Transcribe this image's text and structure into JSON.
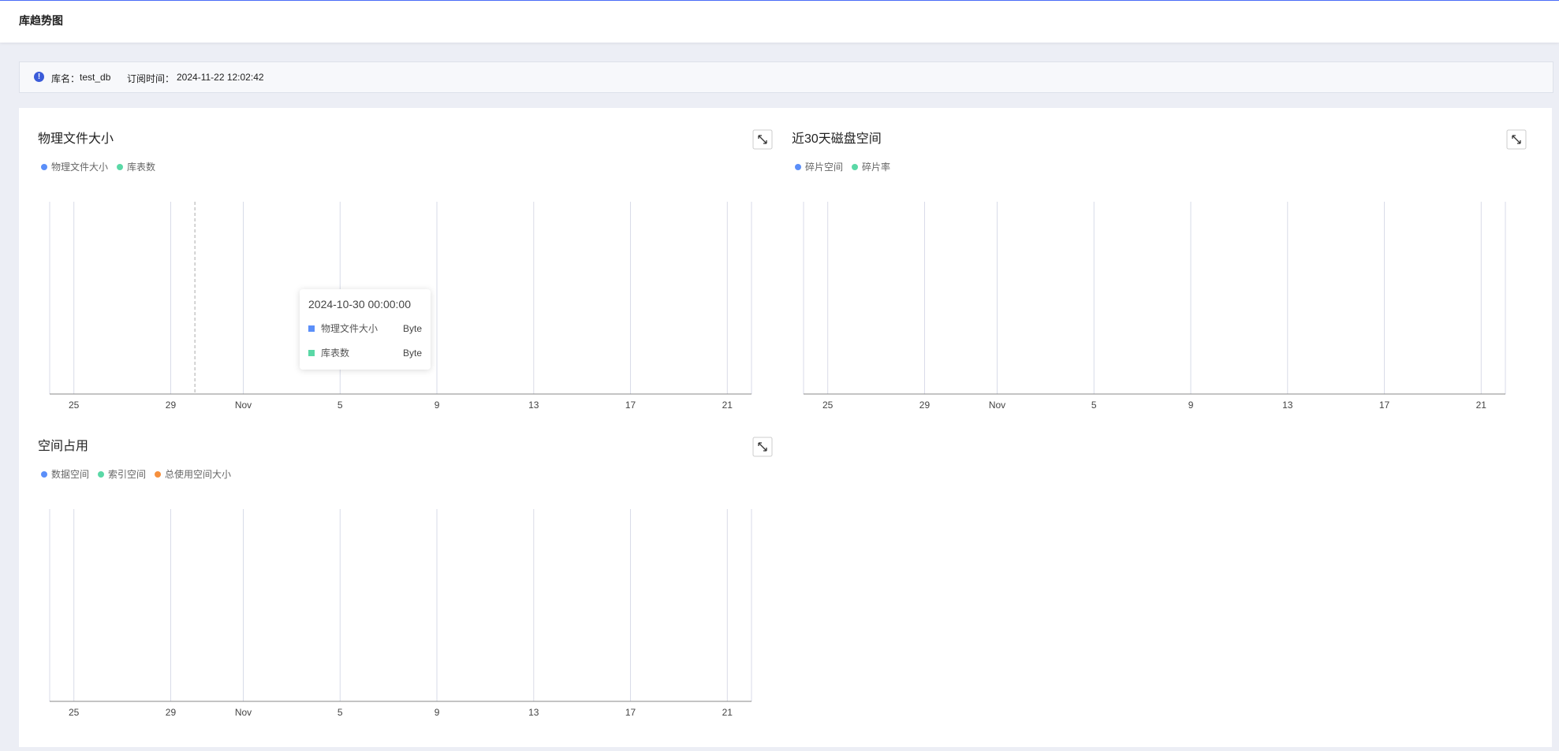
{
  "header": {
    "title": "库趋势图"
  },
  "info": {
    "db_label": "库名：",
    "db_name": "test_db",
    "time_label": "订阅时间：",
    "time": "2024-11-22 12:02:42"
  },
  "panels": [
    {
      "title": "物理文件大小",
      "legend": [
        {
          "name": "物理文件大小",
          "color": "#5b8ff9"
        },
        {
          "name": "库表数",
          "color": "#5ad8a6"
        }
      ],
      "xticks": [
        "25",
        "29",
        "Nov",
        "5",
        "9",
        "13",
        "17",
        "21"
      ],
      "tooltip": {
        "title": "2024-10-30 00:00:00",
        "rows": [
          {
            "name": "物理文件大小",
            "unit": "Byte",
            "color": "#5b8ff9"
          },
          {
            "name": "库表数",
            "unit": "Byte",
            "color": "#5ad8a6"
          }
        ]
      }
    },
    {
      "title": "近30天磁盘空间",
      "legend": [
        {
          "name": "碎片空间",
          "color": "#5b8ff9"
        },
        {
          "name": "碎片率",
          "color": "#5ad8a6"
        }
      ],
      "xticks": [
        "25",
        "29",
        "Nov",
        "5",
        "9",
        "13",
        "17",
        "21"
      ]
    },
    {
      "title": "空间占用",
      "legend": [
        {
          "name": "数据空间",
          "color": "#5b8ff9"
        },
        {
          "name": "索引空间",
          "color": "#5ad8a6"
        },
        {
          "name": "总使用空间大小",
          "color": "#f6903d"
        }
      ],
      "xticks": [
        "25",
        "29",
        "Nov",
        "5",
        "9",
        "13",
        "17",
        "21"
      ]
    }
  ]
}
